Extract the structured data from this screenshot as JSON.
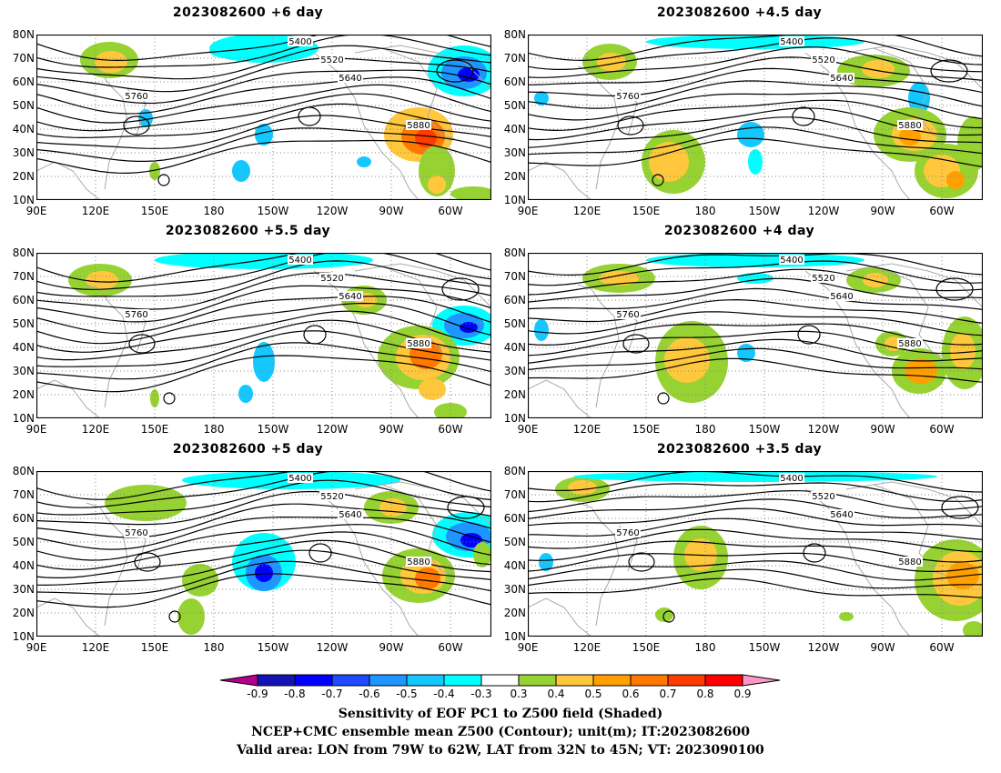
{
  "panels": [
    {
      "title": "2023082600 +6 day"
    },
    {
      "title": "2023082600 +4.5 day"
    },
    {
      "title": "2023082600 +5.5 day"
    },
    {
      "title": "2023082600 +4 day"
    },
    {
      "title": "2023082600 +5 day"
    },
    {
      "title": "2023082600 +3.5 day"
    }
  ],
  "lat_ticks": [
    "80N",
    "70N",
    "60N",
    "50N",
    "40N",
    "30N",
    "20N",
    "10N"
  ],
  "lon_ticks": [
    "90E",
    "120E",
    "150E",
    "180",
    "150W",
    "120W",
    "90W",
    "60W"
  ],
  "contour_levels": [
    "5400",
    "5520",
    "5640",
    "5760",
    "5880"
  ],
  "colorbar": {
    "labels": [
      "-0.9",
      "-0.8",
      "-0.7",
      "-0.6",
      "-0.5",
      "-0.4",
      "-0.3",
      "0.3",
      "0.4",
      "0.5",
      "0.6",
      "0.7",
      "0.8",
      "0.9"
    ],
    "colors": [
      "#b4008c",
      "#1414b4",
      "#0000ff",
      "#1e4bff",
      "#1e96ff",
      "#14c8ff",
      "#00ffff",
      "#ffffff",
      "#96d232",
      "#ffc83c",
      "#ffa000",
      "#ff7800",
      "#ff3c00",
      "#ff0000",
      "#ff96c8"
    ]
  },
  "caption": {
    "line1": "Sensitivity of EOF PC1 to Z500 field (Shaded)",
    "line2": "NCEP+CMC ensemble mean Z500 (Contour); unit(m); IT:2023082600",
    "line3": "Valid area: LON from 79W to 62W, LAT from 32N to 45N; VT: 2023090100"
  }
}
